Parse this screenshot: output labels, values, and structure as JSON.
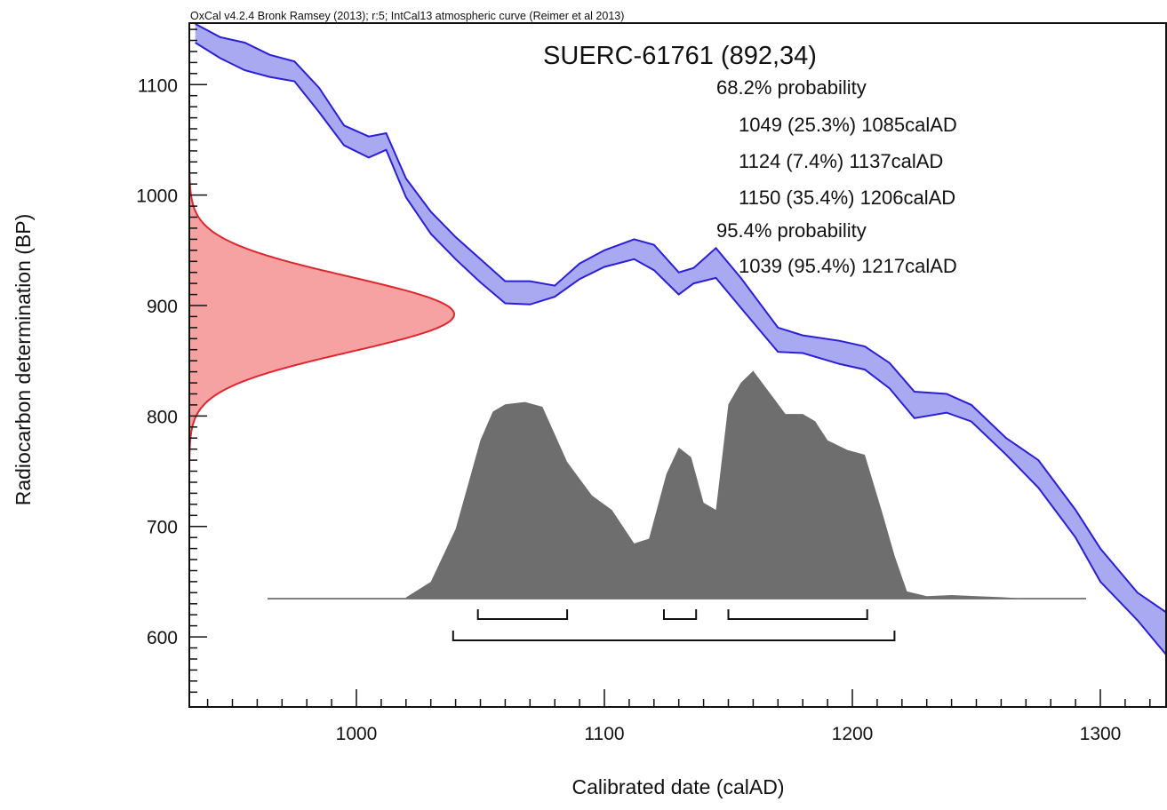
{
  "chart_data": {
    "type": "area",
    "header": "OxCal v4.2.4 Bronk Ramsey (2013); r:5; IntCal13 atmospheric curve (Reimer et al 2013)",
    "title": "SUERC-61761 (892,34)",
    "xlabel": "Calibrated date (calAD)",
    "ylabel": "Radiocarbon determination (BP)",
    "xlim": [
      935,
      1328
    ],
    "ylim": [
      540,
      1155
    ],
    "x_ticks": [
      1000,
      1100,
      1200,
      1300
    ],
    "y_ticks": [
      600,
      700,
      800,
      900,
      1000,
      1100
    ],
    "grid": false,
    "colors": {
      "calibration_curve": "#2a1fd6",
      "calibration_fill": "#a9a9f2",
      "radiocarbon_curve": "#e0262e",
      "radiocarbon_fill": "#f6a2a2",
      "posterior_fill": "#6e6e6e"
    },
    "probability_text": {
      "sigma1_label": "68.2% probability",
      "sigma1_ranges": [
        "1049 (25.3%) 1085calAD",
        "1124 (7.4%) 1137calAD",
        "1150 (35.4%) 1206calAD"
      ],
      "sigma2_label": "95.4% probability",
      "sigma2_ranges": [
        "1039 (95.4%) 1217calAD"
      ]
    },
    "sigma1_brackets": [
      [
        1049,
        1085
      ],
      [
        1124,
        1137
      ],
      [
        1150,
        1206
      ]
    ],
    "sigma2_brackets": [
      [
        1039,
        1217
      ]
    ],
    "radiocarbon_measurement": {
      "mean": 892,
      "error": 34
    },
    "calibration_curve": {
      "x": [
        935,
        945,
        955,
        965,
        975,
        985,
        995,
        1005,
        1012,
        1020,
        1030,
        1040,
        1050,
        1060,
        1070,
        1080,
        1090,
        1100,
        1112,
        1120,
        1130,
        1136,
        1145,
        1155,
        1170,
        1180,
        1195,
        1205,
        1215,
        1225,
        1238,
        1248,
        1262,
        1275,
        1290,
        1300,
        1315,
        1328
      ],
      "upper": [
        1155,
        1143,
        1138,
        1127,
        1121,
        1097,
        1063,
        1053,
        1056,
        1015,
        985,
        962,
        942,
        922,
        922,
        918,
        938,
        950,
        960,
        955,
        930,
        934,
        952,
        925,
        880,
        873,
        868,
        863,
        848,
        822,
        820,
        810,
        780,
        760,
        715,
        680,
        640,
        620
      ],
      "lower": [
        1138,
        1124,
        1113,
        1107,
        1103,
        1075,
        1045,
        1034,
        1041,
        998,
        965,
        942,
        921,
        902,
        901,
        908,
        924,
        935,
        942,
        932,
        910,
        920,
        925,
        898,
        858,
        857,
        847,
        842,
        825,
        798,
        803,
        795,
        765,
        735,
        690,
        650,
        615,
        580
      ]
    },
    "posterior_distribution": {
      "x": [
        1020,
        1030,
        1040,
        1050,
        1055,
        1060,
        1068,
        1075,
        1085,
        1095,
        1103,
        1112,
        1118,
        1125,
        1130,
        1135,
        1140,
        1145,
        1150,
        1155,
        1160,
        1168,
        1173,
        1180,
        1185,
        1190,
        1198,
        1205,
        1212,
        1217,
        1222,
        1230,
        1240,
        1250,
        1260,
        1270
      ],
      "density": [
        0.005,
        0.07,
        0.29,
        0.66,
        0.78,
        0.81,
        0.82,
        0.8,
        0.57,
        0.43,
        0.37,
        0.23,
        0.25,
        0.52,
        0.63,
        0.59,
        0.4,
        0.37,
        0.81,
        0.9,
        0.95,
        0.84,
        0.77,
        0.77,
        0.74,
        0.66,
        0.62,
        0.6,
        0.36,
        0.18,
        0.03,
        0.01,
        0.015,
        0.01,
        0.006,
        0.0
      ]
    }
  }
}
